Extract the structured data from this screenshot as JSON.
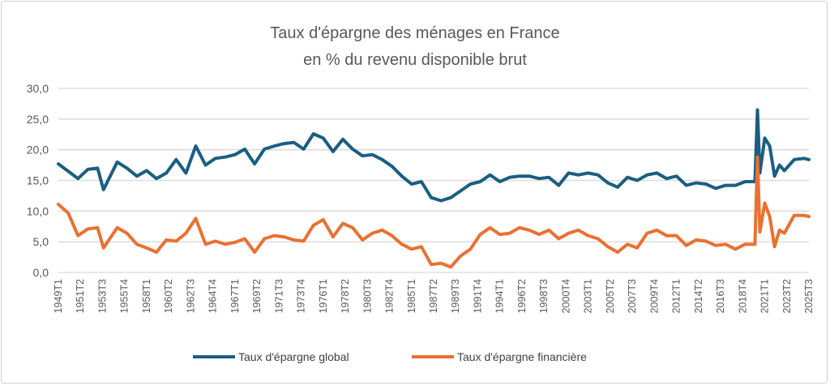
{
  "chart_data": {
    "type": "line",
    "title": "Taux d'épargne des ménages en France",
    "subtitle": "en % du revenu disponible brut",
    "xlabel": "",
    "ylabel": "",
    "ylim": [
      0,
      30
    ],
    "y_ticks": [
      "0,0",
      "5,0",
      "10,0",
      "15,0",
      "20,0",
      "25,0",
      "30,0"
    ],
    "y_tick_values": [
      0,
      5,
      10,
      15,
      20,
      25,
      30
    ],
    "grid": true,
    "legend_position": "bottom",
    "x_range": [
      1949.0,
      2025.5
    ],
    "x_tick_labels": [
      "1949T1",
      "1951T2",
      "1953T3",
      "1955T4",
      "1958T1",
      "1960T2",
      "1962T3",
      "1964T4",
      "1967T1",
      "1969T2",
      "1971T3",
      "1973T4",
      "1976T1",
      "1978T2",
      "1980T3",
      "1982T4",
      "1985T1",
      "1987T2",
      "1989T3",
      "1991T4",
      "1994T1",
      "1996T2",
      "1998T3",
      "2000T4",
      "2003T1",
      "2005T2",
      "2007T3",
      "2009T4",
      "2012T1",
      "2014T2",
      "2016T3",
      "2018T4",
      "2021T1",
      "2023T2",
      "2025T3"
    ],
    "x": [
      1949,
      1950,
      1951,
      1952,
      1953,
      1953.6,
      1955,
      1956,
      1957,
      1958,
      1959,
      1960,
      1961,
      1962,
      1963,
      1964,
      1965,
      1966,
      1967,
      1968,
      1969,
      1970,
      1971,
      1972,
      1973,
      1974,
      1975,
      1976,
      1977,
      1978,
      1979,
      1980,
      1981,
      1982,
      1983,
      1984,
      1985,
      1986,
      1987,
      1988,
      1989,
      1990,
      1991,
      1992,
      1993,
      1994,
      1995,
      1996,
      1997,
      1998,
      1999,
      2000,
      2001,
      2002,
      2003,
      2004,
      2005,
      2006,
      2007,
      2008,
      2009,
      2010,
      2011,
      2012,
      2013,
      2014,
      2015,
      2016,
      2017,
      2018,
      2019,
      2020,
      2020.25,
      2020.5,
      2021,
      2021.5,
      2022,
      2022.5,
      2023,
      2024,
      2025,
      2025.5
    ],
    "series": [
      {
        "name": "Taux d'épargne global",
        "color": "#1b5e82",
        "values": [
          17.7,
          16.5,
          15.3,
          16.8,
          17,
          13.5,
          18,
          17,
          15.7,
          16.6,
          15.3,
          16.2,
          18.4,
          16.2,
          20.6,
          17.5,
          18.6,
          18.8,
          19.2,
          20.1,
          17.7,
          20.1,
          20.6,
          21,
          21.2,
          20.1,
          22.6,
          21.9,
          19.7,
          21.7,
          20.1,
          19,
          19.2,
          18.4,
          17.3,
          15.7,
          14.4,
          14.8,
          12.2,
          11.7,
          12.2,
          13.3,
          14.4,
          14.8,
          15.9,
          14.8,
          15.5,
          15.7,
          15.7,
          15.3,
          15.5,
          14.2,
          16.2,
          15.9,
          16.2,
          15.9,
          14.6,
          13.9,
          15.5,
          15,
          15.9,
          16.2,
          15.3,
          15.7,
          14.2,
          14.6,
          14.4,
          13.7,
          14.2,
          14.2,
          14.8,
          14.8,
          26.5,
          16.2,
          21.9,
          20.6,
          15.7,
          17.5,
          16.6,
          18.4,
          18.6,
          18.4
        ]
      },
      {
        "name": "Taux d'épargne financière",
        "color": "#e97132",
        "values": [
          11.1,
          9.7,
          6,
          7.1,
          7.3,
          4,
          7.3,
          6.4,
          4.6,
          4,
          3.3,
          5.3,
          5.1,
          6.4,
          8.8,
          4.6,
          5.1,
          4.6,
          4.9,
          5.5,
          3.3,
          5.5,
          6,
          5.8,
          5.3,
          5.1,
          7.7,
          8.6,
          5.8,
          8,
          7.3,
          5.3,
          6.4,
          6.9,
          6,
          4.6,
          3.8,
          4.2,
          1.3,
          1.5,
          0.9,
          2.7,
          3.8,
          6.2,
          7.3,
          6.2,
          6.4,
          7.3,
          6.9,
          6.2,
          6.9,
          5.5,
          6.4,
          6.9,
          6,
          5.5,
          4.2,
          3.3,
          4.6,
          4,
          6.4,
          6.9,
          6,
          6,
          4.4,
          5.3,
          5.1,
          4.4,
          4.6,
          3.8,
          4.6,
          4.6,
          18.8,
          6.6,
          11.3,
          9.1,
          4.2,
          6.9,
          6.4,
          9.3,
          9.3,
          9.1
        ]
      }
    ]
  }
}
